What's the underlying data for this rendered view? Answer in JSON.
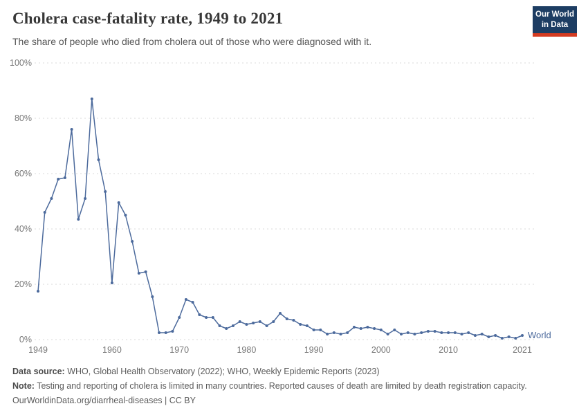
{
  "header": {
    "title": "Cholera case-fatality rate, 1949 to 2021",
    "subtitle": "The share of people who died from cholera out of those who were diagnosed with it.",
    "logo": {
      "line1": "Our World",
      "line2": "in Data",
      "bg_color": "#1d3d63",
      "stripe_color": "#d43b21"
    }
  },
  "chart_data": {
    "type": "line",
    "title": "Cholera case-fatality rate, 1949 to 2021",
    "xlabel": "",
    "ylabel": "",
    "xlim": [
      1949,
      2021
    ],
    "ylim": [
      0,
      100
    ],
    "grid": "horizontal-dotted",
    "legend_position": "end-of-line",
    "y_ticks": [
      {
        "value": 0,
        "label": "0%"
      },
      {
        "value": 20,
        "label": "20%"
      },
      {
        "value": 40,
        "label": "40%"
      },
      {
        "value": 60,
        "label": "60%"
      },
      {
        "value": 80,
        "label": "80%"
      },
      {
        "value": 100,
        "label": "100%"
      }
    ],
    "x_ticks": [
      {
        "value": 1949,
        "label": "1949"
      },
      {
        "value": 1960,
        "label": "1960"
      },
      {
        "value": 1970,
        "label": "1970"
      },
      {
        "value": 1980,
        "label": "1980"
      },
      {
        "value": 1990,
        "label": "1990"
      },
      {
        "value": 2000,
        "label": "2000"
      },
      {
        "value": 2010,
        "label": "2010"
      },
      {
        "value": 2021,
        "label": "2021"
      }
    ],
    "series": [
      {
        "name": "World",
        "color": "#4c6a9c",
        "x": [
          1949,
          1950,
          1951,
          1952,
          1953,
          1954,
          1955,
          1956,
          1957,
          1958,
          1959,
          1960,
          1961,
          1962,
          1963,
          1964,
          1965,
          1966,
          1967,
          1968,
          1969,
          1970,
          1971,
          1972,
          1973,
          1974,
          1975,
          1976,
          1977,
          1978,
          1979,
          1980,
          1981,
          1982,
          1983,
          1984,
          1985,
          1986,
          1987,
          1988,
          1989,
          1990,
          1991,
          1992,
          1993,
          1994,
          1995,
          1996,
          1997,
          1998,
          1999,
          2000,
          2001,
          2002,
          2003,
          2004,
          2005,
          2006,
          2007,
          2008,
          2009,
          2010,
          2011,
          2012,
          2013,
          2014,
          2015,
          2016,
          2017,
          2018,
          2019,
          2020,
          2021
        ],
        "values": [
          17.5,
          46,
          51,
          58,
          58.5,
          76,
          43.5,
          51,
          87,
          65,
          53.5,
          20.5,
          49.5,
          45,
          35.5,
          24,
          24.5,
          15.5,
          2.5,
          2.5,
          3,
          8,
          14.5,
          13.5,
          9,
          8,
          8,
          5,
          4,
          5,
          6.5,
          5.5,
          6,
          6.5,
          5,
          6.5,
          9.5,
          7.5,
          7,
          5.5,
          5,
          3.5,
          3.5,
          2,
          2.5,
          2,
          2.5,
          4.5,
          4,
          4.5,
          4,
          3.5,
          2,
          3.5,
          2,
          2.5,
          2,
          2.5,
          3,
          3,
          2.5,
          2.5,
          2.5,
          2,
          2.5,
          1.5,
          2,
          1,
          1.5,
          0.5,
          1,
          0.5,
          1.5
        ]
      }
    ]
  },
  "footer": {
    "source_label": "Data source:",
    "source_text": " WHO, Global Health Observatory (2022); WHO, Weekly Epidemic Reports (2023)",
    "note_label": "Note:",
    "note_text": " Testing and reporting of cholera is limited in many countries. Reported causes of death are limited by death registration capacity.",
    "link": "OurWorldinData.org/diarrheal-diseases | CC BY"
  }
}
